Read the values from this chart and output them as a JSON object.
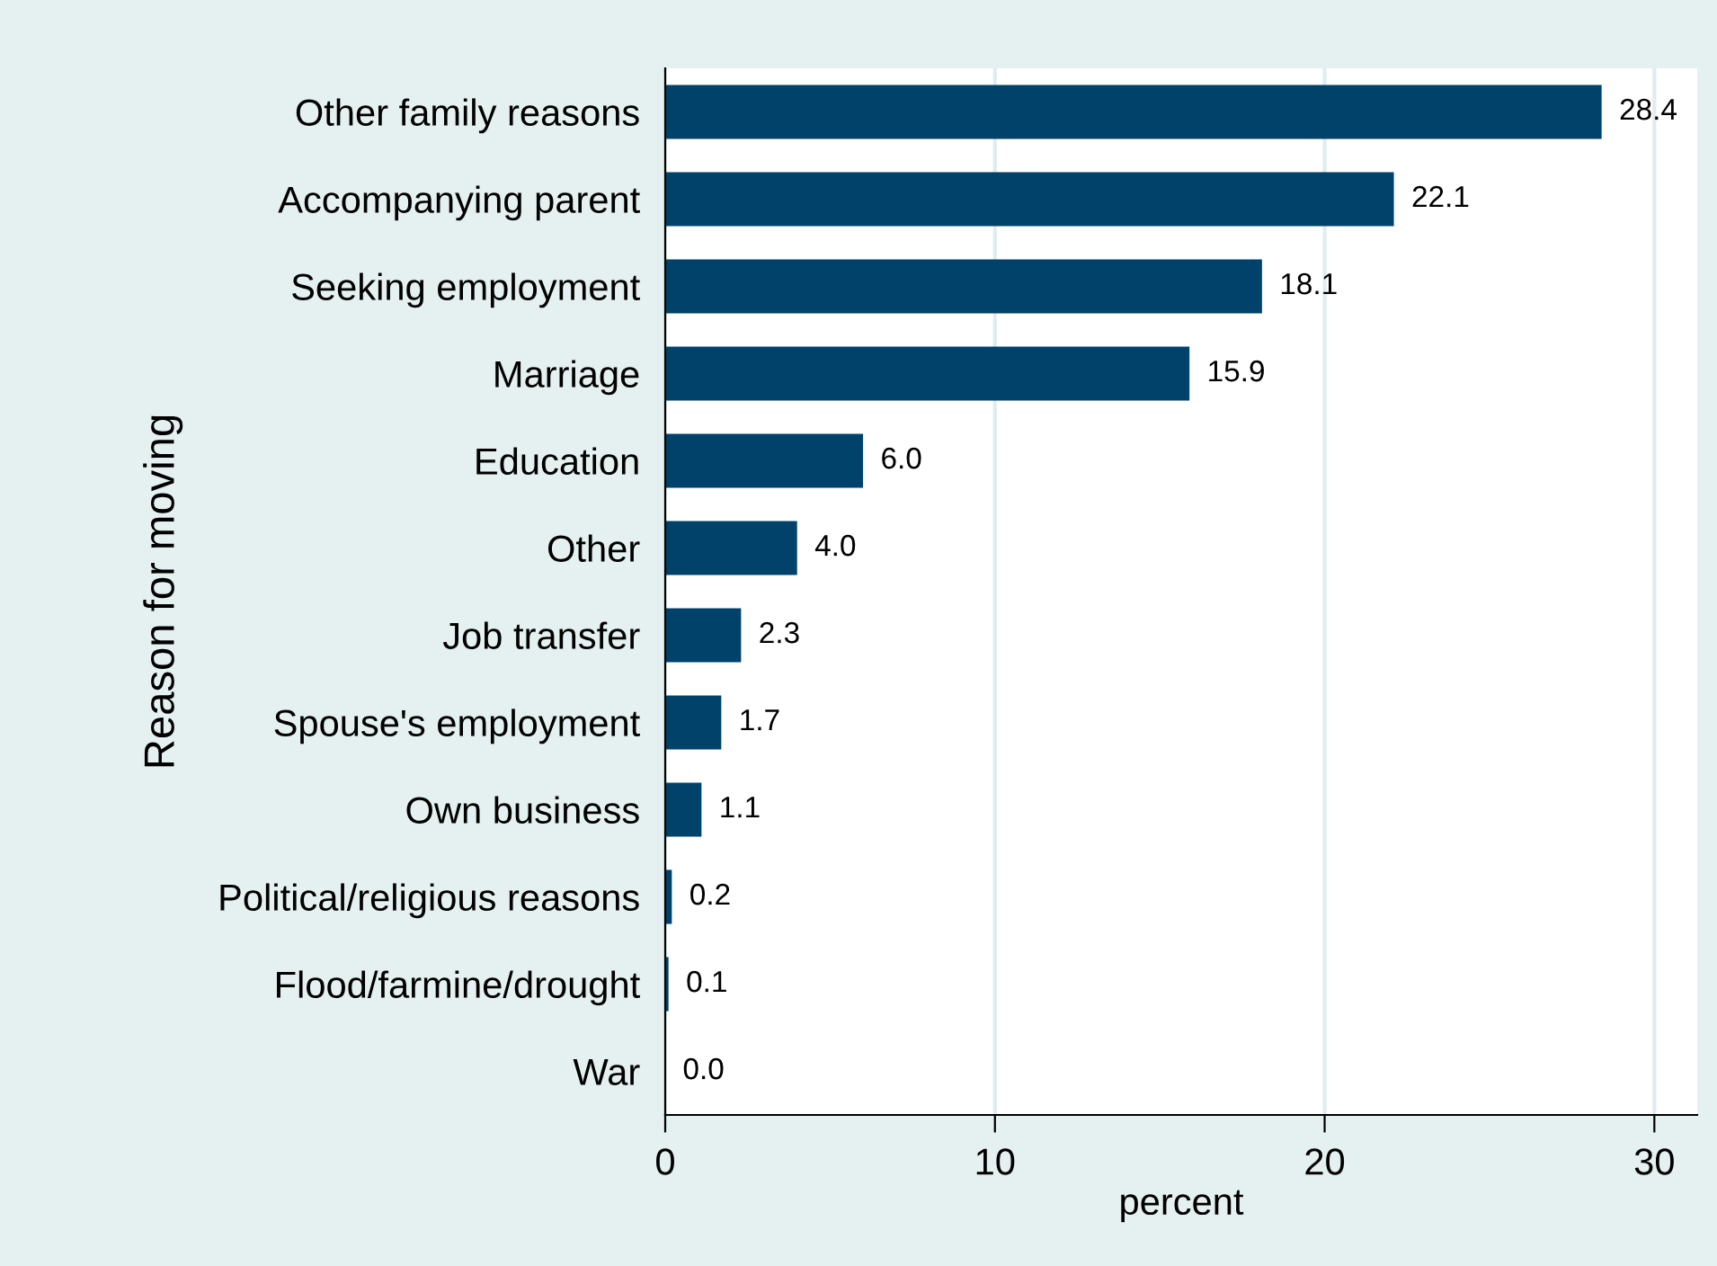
{
  "chart_data": {
    "type": "bar",
    "orientation": "horizontal",
    "ylabel": "Reason for moving",
    "xlabel": "percent",
    "categories": [
      "Other family reasons",
      "Accompanying parent",
      "Seeking employment",
      "Marriage",
      "Education",
      "Other",
      "Job transfer",
      "Spouse's employment",
      "Own business",
      "Political/religious reasons",
      "Flood/farmine/drought",
      "War"
    ],
    "values": [
      28.4,
      22.1,
      18.1,
      15.9,
      6.0,
      4.0,
      2.3,
      1.7,
      1.1,
      0.2,
      0.1,
      0.0
    ],
    "value_labels": [
      "28.4",
      "22.1",
      "18.1",
      "15.9",
      "6.0",
      "4.0",
      "2.3",
      "1.7",
      "1.1",
      "0.2",
      "0.1",
      "0.0"
    ],
    "color": "#01426a",
    "xlim": [
      0,
      31.3
    ],
    "xticks": [
      0,
      10,
      20,
      30
    ],
    "grid": "x",
    "legend": false
  }
}
